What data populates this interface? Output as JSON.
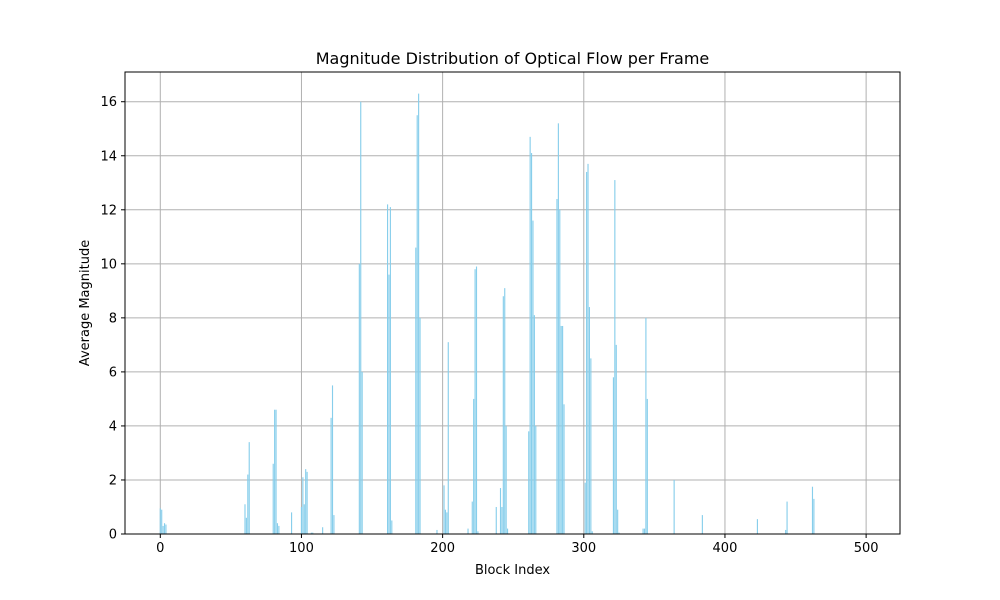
{
  "chart_data": {
    "type": "bar",
    "title": "Magnitude Distribution of Optical Flow per Frame",
    "xlabel": "Block Index",
    "ylabel": "Average Magnitude",
    "xlim": [
      -25,
      524
    ],
    "ylim": [
      0,
      17.1
    ],
    "xticks": [
      0,
      100,
      200,
      300,
      400,
      500
    ],
    "yticks": [
      0,
      2,
      4,
      6,
      8,
      10,
      12,
      14,
      16
    ],
    "grid": true,
    "bar_color": "#87ceeb",
    "x": [
      0,
      1,
      2,
      3,
      4,
      60,
      61,
      62,
      63,
      80,
      81,
      82,
      83,
      84,
      93,
      100,
      101,
      102,
      103,
      104,
      107,
      108,
      115,
      121,
      122,
      123,
      141,
      142,
      143,
      161,
      162,
      163,
      164,
      181,
      182,
      183,
      184,
      196,
      201,
      202,
      203,
      204,
      218,
      221,
      222,
      223,
      224,
      225,
      238,
      241,
      242,
      243,
      244,
      245,
      246,
      261,
      262,
      263,
      264,
      265,
      266,
      281,
      282,
      283,
      284,
      285,
      286,
      301,
      302,
      303,
      304,
      305,
      306,
      321,
      322,
      323,
      324,
      325,
      342,
      343,
      344,
      345,
      364,
      384,
      423,
      443,
      444,
      462,
      463
    ],
    "values": [
      0.95,
      0.9,
      0.3,
      0.4,
      0.35,
      1.1,
      0.6,
      2.2,
      3.4,
      2.6,
      4.6,
      4.6,
      0.4,
      0.3,
      0.8,
      1.0,
      2.1,
      1.1,
      2.4,
      2.3,
      0.05,
      0.05,
      0.25,
      4.3,
      5.5,
      0.7,
      10.0,
      16.0,
      6.0,
      12.2,
      9.6,
      12.1,
      0.5,
      10.6,
      15.5,
      16.3,
      8.0,
      0.15,
      1.8,
      0.9,
      0.8,
      7.1,
      0.2,
      1.2,
      5.0,
      9.8,
      9.9,
      0.1,
      1.0,
      1.7,
      1.0,
      8.8,
      9.1,
      4.0,
      0.2,
      3.8,
      14.7,
      14.1,
      11.6,
      8.1,
      4.0,
      12.4,
      15.2,
      12.0,
      7.7,
      7.7,
      4.8,
      1.9,
      13.4,
      13.7,
      8.4,
      6.5,
      0.1,
      5.8,
      13.1,
      7.0,
      0.9,
      0.05,
      0.2,
      0.2,
      8.0,
      5.0,
      2.0,
      0.7,
      0.55,
      0.15,
      1.2,
      1.75,
      1.3
    ]
  }
}
